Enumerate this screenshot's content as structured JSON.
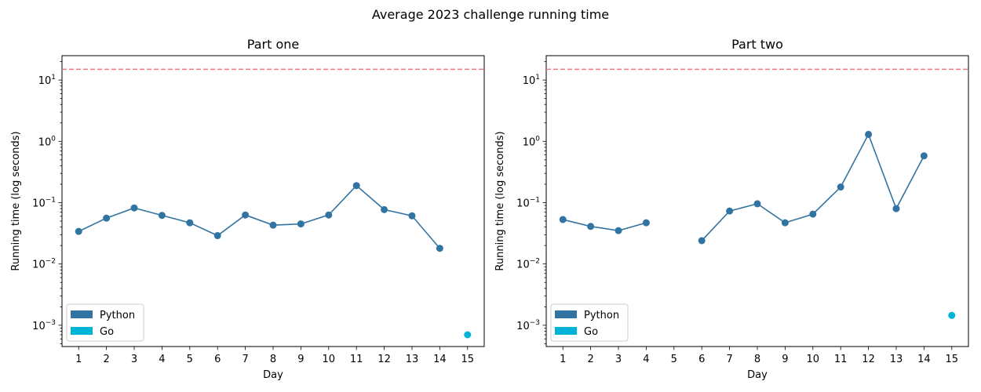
{
  "chart_data": {
    "title": "Average 2023 challenge running time",
    "type": "line",
    "colors": {
      "python": "#3274a1",
      "go": "#00b4d8",
      "threshold": "#f4777f"
    },
    "threshold_value": 15,
    "panels": [
      {
        "subtitle": "Part one",
        "xlabel": "Day",
        "ylabel": "Running time (log seconds)",
        "yscale": "log",
        "ylim": [
          0.00045,
          25
        ],
        "x_ticks": [
          1,
          2,
          3,
          4,
          5,
          6,
          7,
          8,
          9,
          10,
          11,
          12,
          13,
          14,
          15
        ],
        "x_tick_labels": [
          "1",
          "2",
          "3",
          "4",
          "5",
          "6",
          "7",
          "8",
          "9",
          "10",
          "11",
          "12",
          "13",
          "14",
          "15"
        ],
        "y_ticks": [
          0.001,
          0.01,
          0.1,
          1,
          10
        ],
        "y_tick_labels": [
          {
            "base": "10",
            "exp": "−3"
          },
          {
            "base": "10",
            "exp": "−2"
          },
          {
            "base": "10",
            "exp": "−1"
          },
          {
            "base": "10",
            "exp": "0"
          },
          {
            "base": "10",
            "exp": "1"
          }
        ],
        "legend": {
          "placement": "lower-left",
          "entries": [
            "Python",
            "Go"
          ]
        },
        "series": [
          {
            "name": "Python",
            "x": [
              1,
              2,
              3,
              4,
              5,
              6,
              7,
              8,
              9,
              10,
              11,
              12,
              13,
              14
            ],
            "y": [
              0.034,
              0.056,
              0.082,
              0.062,
              0.047,
              0.029,
              0.063,
              0.043,
              0.045,
              0.063,
              0.19,
              0.077,
              0.061,
              0.018
            ]
          },
          {
            "name": "Go",
            "x": [
              15
            ],
            "y": [
              0.0007
            ]
          }
        ]
      },
      {
        "subtitle": "Part two",
        "xlabel": "Day",
        "ylabel": "Running time (log seconds)",
        "yscale": "log",
        "ylim": [
          0.00045,
          25
        ],
        "x_ticks": [
          1,
          2,
          3,
          4,
          5,
          6,
          7,
          8,
          9,
          10,
          11,
          12,
          13,
          14,
          15
        ],
        "x_tick_labels": [
          "1",
          "2",
          "3",
          "4",
          "5",
          "6",
          "7",
          "8",
          "9",
          "10",
          "11",
          "12",
          "13",
          "14",
          "15"
        ],
        "y_ticks": [
          0.001,
          0.01,
          0.1,
          1,
          10
        ],
        "y_tick_labels": [
          {
            "base": "10",
            "exp": "−3"
          },
          {
            "base": "10",
            "exp": "−2"
          },
          {
            "base": "10",
            "exp": "−1"
          },
          {
            "base": "10",
            "exp": "0"
          },
          {
            "base": "10",
            "exp": "1"
          }
        ],
        "legend": {
          "placement": "lower-left",
          "entries": [
            "Python",
            "Go"
          ]
        },
        "series": [
          {
            "name": "Python",
            "x": [
              1,
              2,
              3,
              4,
              5,
              6,
              7,
              8,
              9,
              10,
              11,
              12,
              13,
              14
            ],
            "y": [
              0.053,
              0.041,
              0.035,
              0.047,
              null,
              0.024,
              0.073,
              0.096,
              0.047,
              0.065,
              0.18,
              1.3,
              0.08,
              0.58
            ]
          },
          {
            "name": "Go",
            "x": [
              15
            ],
            "y": [
              0.00145
            ]
          }
        ]
      }
    ]
  }
}
